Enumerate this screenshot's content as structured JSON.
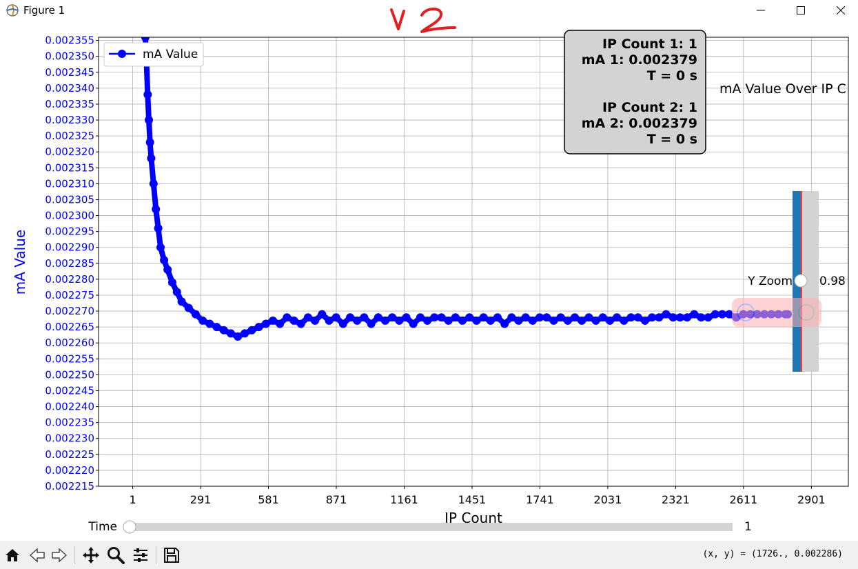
{
  "window": {
    "title": "Figure 1",
    "controls": [
      "minimize",
      "maximize",
      "close"
    ]
  },
  "annotation_scribble": "v2",
  "plot_title": "mA Value Over IP C",
  "info_box": {
    "lines": [
      "IP Count 1: 1",
      "mA 1: 0.002379",
      "T = 0 s",
      "",
      "IP Count 2: 1",
      "mA 2: 0.002379",
      "T = 0 s"
    ]
  },
  "legend": {
    "label": "mA Value",
    "location": "upper left"
  },
  "y_zoom_slider": {
    "label": "Y Zoom",
    "value": "0.98"
  },
  "time_slider": {
    "label": "Time",
    "value": "1"
  },
  "coord_readout": "(x, y) = (1726., 0.002286)",
  "toolbar": {
    "buttons": [
      "home-icon",
      "back-icon",
      "forward-icon",
      "pan-icon",
      "zoom-icon",
      "configure-subplots-icon",
      "save-icon"
    ]
  },
  "colors": {
    "series": "#0000ff",
    "ytick_color": "#0000ff",
    "ylabel_color": "#0000ff",
    "slider_fill": "#1f77b4",
    "slider_marker": "#ff3333",
    "track": "#d3d3d3"
  },
  "chart_data": {
    "type": "line",
    "title": "",
    "xlabel": "IP Count",
    "ylabel": "mA Value",
    "xlim": [
      -145,
      3059
    ],
    "ylim": [
      0.002215,
      0.002356
    ],
    "xticks": [
      1,
      291,
      581,
      871,
      1161,
      1451,
      1741,
      2031,
      2321,
      2611,
      2901
    ],
    "yticks": [
      "0.002355",
      "0.002350",
      "0.002345",
      "0.002340",
      "0.002335",
      "0.002330",
      "0.002325",
      "0.002320",
      "0.002315",
      "0.002310",
      "0.002305",
      "0.002300",
      "0.002295",
      "0.002290",
      "0.002285",
      "0.002280",
      "0.002275",
      "0.002270",
      "0.002265",
      "0.002260",
      "0.002255",
      "0.002250",
      "0.002245",
      "0.002240",
      "0.002235",
      "0.002230",
      "0.002225",
      "0.002220",
      "0.002215"
    ],
    "grid": true,
    "marker": "o",
    "series": [
      {
        "name": "mA Value",
        "x": [
          55,
          60,
          65,
          70,
          75,
          80,
          90,
          100,
          110,
          120,
          135,
          150,
          170,
          190,
          210,
          240,
          270,
          300,
          330,
          360,
          390,
          420,
          450,
          480,
          510,
          540,
          570,
          600,
          630,
          660,
          690,
          720,
          750,
          780,
          810,
          840,
          870,
          900,
          930,
          960,
          990,
          1020,
          1050,
          1080,
          1110,
          1140,
          1170,
          1200,
          1230,
          1260,
          1290,
          1320,
          1350,
          1380,
          1410,
          1440,
          1470,
          1500,
          1530,
          1560,
          1590,
          1620,
          1650,
          1680,
          1710,
          1740,
          1770,
          1800,
          1830,
          1860,
          1890,
          1920,
          1950,
          1980,
          2010,
          2040,
          2070,
          2100,
          2130,
          2160,
          2190,
          2220,
          2250,
          2280,
          2310,
          2340,
          2370,
          2400,
          2430,
          2460,
          2490,
          2520,
          2550,
          2580,
          2610,
          2640,
          2670,
          2700,
          2730,
          2760,
          2790,
          2800
        ],
        "y": [
          0.002356,
          0.002348,
          0.002338,
          0.00233,
          0.002323,
          0.002318,
          0.00231,
          0.002302,
          0.002296,
          0.00229,
          0.002286,
          0.002283,
          0.002279,
          0.002276,
          0.002273,
          0.002271,
          0.002269,
          0.002267,
          0.002266,
          0.002265,
          0.002264,
          0.002263,
          0.002262,
          0.002263,
          0.002264,
          0.002265,
          0.002266,
          0.002267,
          0.002266,
          0.002268,
          0.002267,
          0.002266,
          0.002268,
          0.002267,
          0.002269,
          0.002267,
          0.002268,
          0.002266,
          0.002268,
          0.002267,
          0.002268,
          0.002266,
          0.002268,
          0.002267,
          0.002268,
          0.002267,
          0.002268,
          0.002266,
          0.002268,
          0.002267,
          0.002268,
          0.002268,
          0.002267,
          0.002268,
          0.002267,
          0.002268,
          0.002267,
          0.002268,
          0.002267,
          0.002268,
          0.002266,
          0.002268,
          0.002267,
          0.002268,
          0.002267,
          0.002268,
          0.002268,
          0.002267,
          0.002268,
          0.002267,
          0.002268,
          0.002267,
          0.002268,
          0.002267,
          0.002268,
          0.002267,
          0.002268,
          0.002267,
          0.002268,
          0.002268,
          0.002267,
          0.002268,
          0.002268,
          0.002269,
          0.002268,
          0.002268,
          0.002268,
          0.002269,
          0.002268,
          0.002268,
          0.002269,
          0.002269,
          0.002269,
          0.002268,
          0.002269,
          0.002269,
          0.002269,
          0.002269,
          0.002269,
          0.002269,
          0.002269,
          0.002269
        ]
      }
    ]
  }
}
